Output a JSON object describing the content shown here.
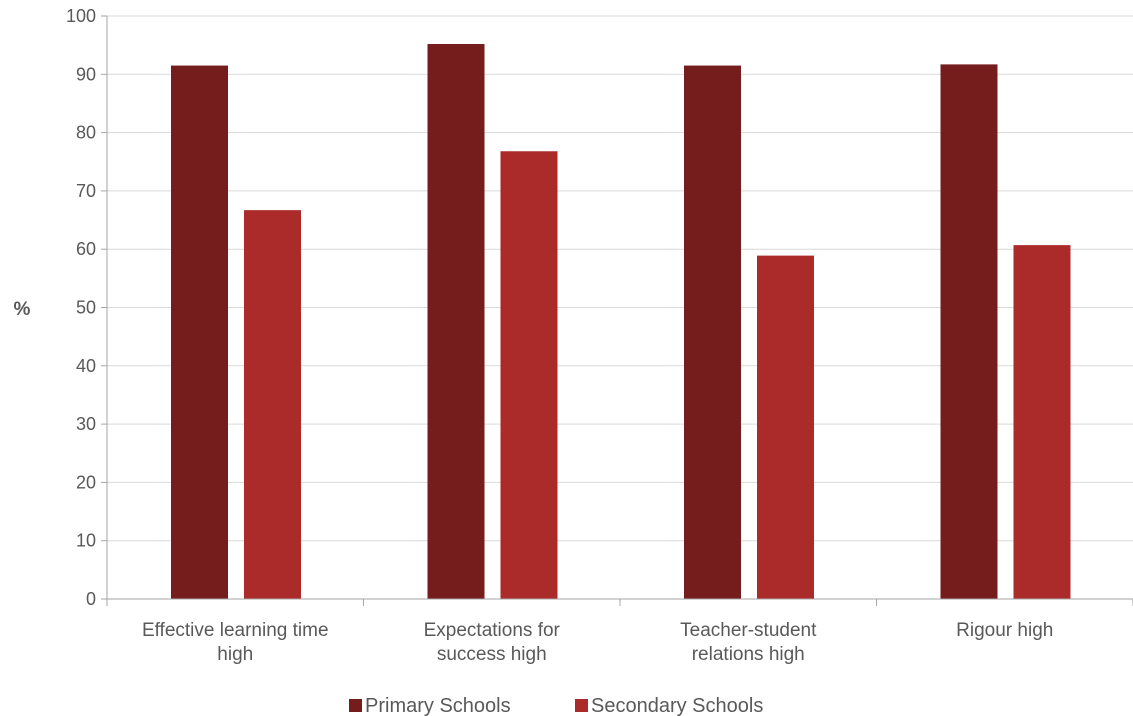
{
  "chart_data": {
    "type": "bar",
    "title": "",
    "xlabel": "",
    "ylabel": "%",
    "ylim": [
      0,
      100
    ],
    "yticks": [
      0,
      10,
      20,
      30,
      40,
      50,
      60,
      70,
      80,
      90,
      100
    ],
    "grid": true,
    "legend_position": "bottom",
    "categories": [
      [
        "Effective learning time",
        "high"
      ],
      [
        "Expectations for",
        "success high"
      ],
      [
        "Teacher-student",
        "relations high"
      ],
      [
        "Rigour high"
      ]
    ],
    "series": [
      {
        "name": "Primary Schools",
        "color": "#751d1d",
        "values": [
          91.5,
          95.2,
          91.5,
          91.7
        ]
      },
      {
        "name": "Secondary Schools",
        "color": "#ab2b2b",
        "values": [
          66.7,
          76.8,
          58.9,
          60.7
        ]
      }
    ]
  }
}
